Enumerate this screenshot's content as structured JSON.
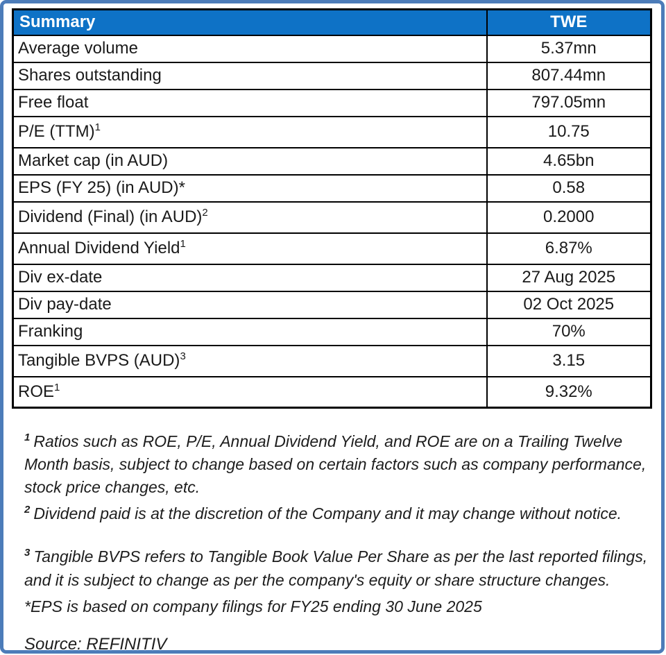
{
  "colors": {
    "header_bg": "#0e72c6",
    "header_text": "#ffffff",
    "frame_border": "#4c7cb9",
    "table_border": "#000000",
    "text": "#1a1a1a"
  },
  "table": {
    "header": {
      "label": "Summary",
      "value": "TWE"
    },
    "rows": [
      {
        "label": "Average volume",
        "sup": "",
        "value": "5.37mn"
      },
      {
        "label": "Shares outstanding",
        "sup": "",
        "value": "807.44mn"
      },
      {
        "label": "Free float",
        "sup": "",
        "value": "797.05mn"
      },
      {
        "label": "P/E (TTM)",
        "sup": "1",
        "value": "10.75"
      },
      {
        "label": "Market cap (in AUD)",
        "sup": "",
        "value": "4.65bn"
      },
      {
        "label": "EPS (FY 25) (in AUD)*",
        "sup": "",
        "value": "0.58"
      },
      {
        "label": "Dividend (Final) (in AUD)",
        "sup": "2",
        "value": "0.2000"
      },
      {
        "label": "Annual Dividend Yield",
        "sup": "1",
        "value": "6.87%"
      },
      {
        "label": "Div ex-date",
        "sup": "",
        "value": "27 Aug 2025"
      },
      {
        "label": "Div pay-date",
        "sup": "",
        "value": "02 Oct 2025"
      },
      {
        "label": "Franking",
        "sup": "",
        "value": "70%"
      },
      {
        "label": "Tangible BVPS (AUD)",
        "sup": "3",
        "value": "3.15"
      },
      {
        "label": "ROE",
        "sup": "1",
        "value": "9.32%"
      }
    ]
  },
  "footnotes": [
    {
      "sup": "1",
      "text": "Ratios such as ROE, P/E,  Annual Dividend Yield, and ROE are on a Trailing Twelve Month basis, subject to change based on certain factors such as company performance, stock price changes, etc."
    },
    {
      "sup": "2",
      "text": "Dividend paid is at the discretion of the Company and it may change without notice."
    },
    {
      "sup": "3",
      "text": "Tangible BVPS refers to Tangible Book Value Per Share as per the last reported filings, and it is subject to change as per the company's equity or share structure changes."
    },
    {
      "sup": "",
      "text": "*EPS is based on company filings for FY25 ending 30 June 2025"
    }
  ],
  "source": "Source: REFINITIV"
}
